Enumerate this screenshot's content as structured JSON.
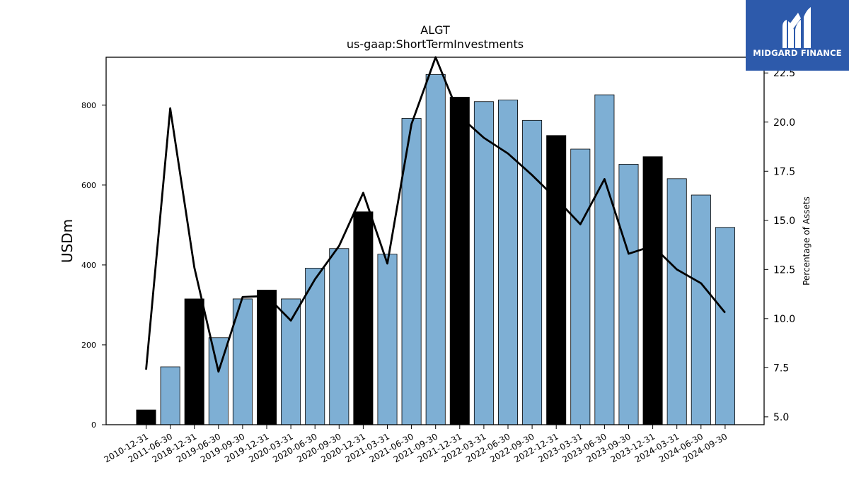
{
  "brand": {
    "name": "MIDGARD FINANCE",
    "logo_color": "#2d5aab",
    "logo_icon": "midgard-m-icon"
  },
  "chart_data": {
    "type": "bar",
    "title": "ALGT",
    "subtitle": "us-gaap:ShortTermInvestments",
    "ylabel": "USDm",
    "y2label": "Percentage of Assets",
    "ylim": [
      0,
      920
    ],
    "y2lim": [
      4.6,
      23.3
    ],
    "yticks": [
      0,
      200,
      400,
      600,
      800
    ],
    "y2ticks": [
      5.0,
      7.5,
      10.0,
      12.5,
      15.0,
      17.5,
      20.0,
      22.5
    ],
    "categories": [
      "2010-12-31",
      "2011-06-30",
      "2018-12-31",
      "2019-06-30",
      "2019-09-30",
      "2019-12-31",
      "2020-03-31",
      "2020-06-30",
      "2020-09-30",
      "2020-12-31",
      "2021-03-31",
      "2021-06-30",
      "2021-09-30",
      "2021-12-31",
      "2022-03-31",
      "2022-06-30",
      "2022-09-30",
      "2022-12-31",
      "2023-03-31",
      "2023-06-30",
      "2023-09-30",
      "2023-12-31",
      "2024-03-31",
      "2024-06-30",
      "2024-09-30"
    ],
    "values": [
      37,
      145,
      315,
      218,
      315,
      337,
      315,
      392,
      441,
      533,
      427,
      767,
      877,
      820,
      809,
      813,
      762,
      724,
      690,
      826,
      652,
      671,
      616,
      575,
      494
    ],
    "year_end": [
      true,
      false,
      true,
      false,
      false,
      true,
      false,
      false,
      false,
      true,
      false,
      false,
      false,
      true,
      false,
      false,
      false,
      true,
      false,
      false,
      false,
      true,
      false,
      false,
      false
    ],
    "pct_of_assets": [
      7.4,
      20.7,
      12.6,
      7.3,
      11.1,
      11.15,
      9.9,
      12.0,
      13.7,
      16.4,
      12.8,
      19.9,
      23.3,
      20.3,
      19.2,
      18.4,
      17.3,
      16.1,
      14.8,
      17.1,
      13.3,
      13.7,
      12.5,
      11.8,
      10.3
    ],
    "colors": {
      "bar_quarter": "#7eafd4",
      "bar_year_end": "#000000",
      "line": "#000000"
    },
    "grid": false,
    "legend": "none"
  }
}
